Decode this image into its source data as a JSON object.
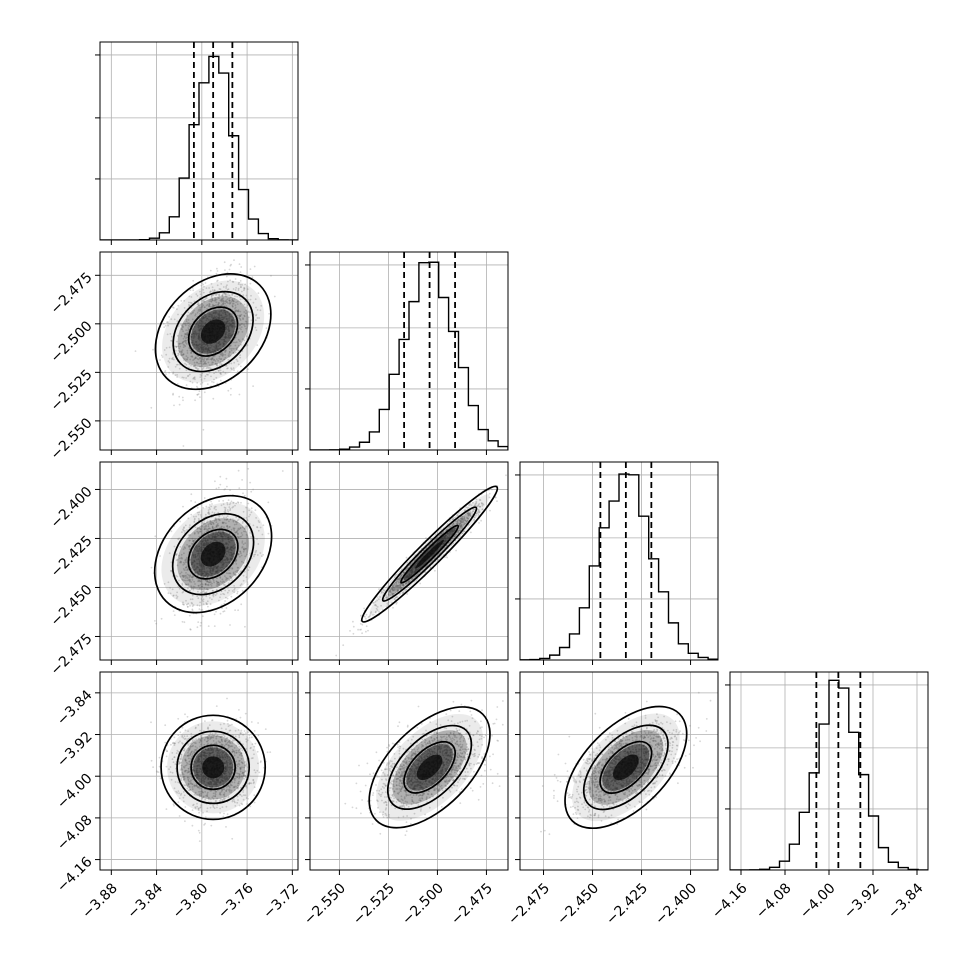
{
  "chart_data": {
    "type": "corner",
    "grid": true,
    "parameters": [
      {
        "mean": -3.79,
        "sd": 0.017,
        "xlim": [
          -3.89,
          -3.715
        ],
        "ticks": [
          {
            "v": -3.88,
            "label": "−3.88"
          },
          {
            "v": -3.84,
            "label": "−3.84"
          },
          {
            "v": -3.8,
            "label": "−3.80"
          },
          {
            "v": -3.76,
            "label": "−3.76"
          },
          {
            "v": -3.72,
            "label": "−3.72"
          }
        ],
        "quantiles": [
          -3.807,
          -3.79,
          -3.773
        ]
      },
      {
        "mean": -2.504,
        "sd": 0.0132,
        "xlim": [
          -2.565,
          -2.464
        ],
        "ticks": [
          {
            "v": -2.55,
            "label": "−2.550"
          },
          {
            "v": -2.525,
            "label": "−2.525"
          },
          {
            "v": -2.5,
            "label": "−2.500"
          },
          {
            "v": -2.475,
            "label": "−2.475"
          }
        ],
        "ylim": [
          -2.463,
          -2.565
        ],
        "yticks": [
          {
            "v": -2.475,
            "label": "−2.475"
          },
          {
            "v": -2.5,
            "label": "−2.500"
          },
          {
            "v": -2.525,
            "label": "−2.525"
          },
          {
            "v": -2.55,
            "label": "−2.550"
          }
        ],
        "quantiles": [
          -2.517,
          -2.504,
          -2.491
        ]
      },
      {
        "mean": -2.433,
        "sd": 0.0134,
        "xlim": [
          -2.487,
          -2.386
        ],
        "ticks": [
          {
            "v": -2.475,
            "label": "−2.475"
          },
          {
            "v": -2.45,
            "label": "−2.450"
          },
          {
            "v": -2.425,
            "label": "−2.425"
          },
          {
            "v": -2.4,
            "label": "−2.400"
          }
        ],
        "ylim": [
          -2.386,
          -2.487
        ],
        "yticks": [
          {
            "v": -2.4,
            "label": "−2.400"
          },
          {
            "v": -2.425,
            "label": "−2.425"
          },
          {
            "v": -2.45,
            "label": "−2.450"
          },
          {
            "v": -2.475,
            "label": "−2.475"
          }
        ],
        "quantiles": [
          -2.446,
          -2.433,
          -2.42
        ]
      },
      {
        "mean": -3.983,
        "sd": 0.04,
        "xlim": [
          -4.18,
          -3.82
        ],
        "ticks": [
          {
            "v": -4.16,
            "label": "−4.16"
          },
          {
            "v": -4.08,
            "label": "−4.08"
          },
          {
            "v": -4.0,
            "label": "−4.00"
          },
          {
            "v": -3.92,
            "label": "−3.92"
          },
          {
            "v": -3.84,
            "label": "−3.84"
          }
        ],
        "ylim": [
          -3.8,
          -4.18
        ],
        "yticks": [
          {
            "v": -3.84,
            "label": "−3.84"
          },
          {
            "v": -3.92,
            "label": "−3.92"
          },
          {
            "v": -4.0,
            "label": "−4.00"
          },
          {
            "v": -4.08,
            "label": "−4.08"
          },
          {
            "v": -4.16,
            "label": "−4.16"
          }
        ],
        "quantiles": [
          -4.023,
          -3.983,
          -3.943
        ]
      }
    ],
    "correlations": [
      [
        0,
        1,
        0.3
      ],
      [
        0,
        2,
        0.3
      ],
      [
        0,
        3,
        0.0
      ],
      [
        1,
        2,
        0.97
      ],
      [
        1,
        3,
        0.55
      ],
      [
        2,
        3,
        0.55
      ]
    ],
    "series_color": "#000000",
    "point_color": "#8c8c8c",
    "grid_color": "#b0b0b0"
  }
}
